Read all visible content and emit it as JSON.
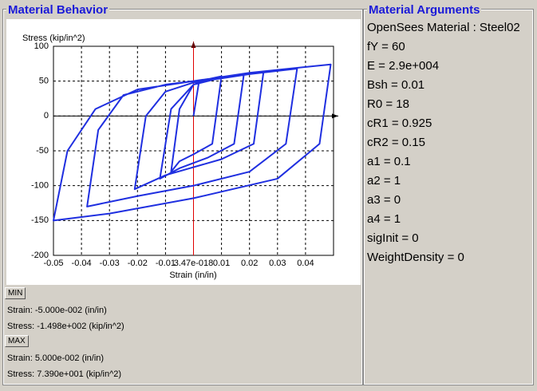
{
  "behavior_panel": {
    "title": "Material Behavior",
    "min_button": "MIN",
    "min_strain": "Strain: -5.000e-002 (in/in)",
    "min_stress": "Stress: -1.498e+002 (kip/in^2)",
    "max_button": "MAX",
    "max_strain": "Strain: 5.000e-002 (in/in)",
    "max_stress": "Stress: 7.390e+001 (kip/in^2)"
  },
  "arguments_panel": {
    "title": "Material Arguments",
    "items": [
      "OpenSees Material : Steel02",
      "fY = 60",
      "E = 2.9e+004",
      "Bsh = 0.01",
      "R0 = 18",
      "cR1 = 0.925",
      "cR2 = 0.15",
      "a1 = 0.1",
      "a2 = 1",
      "a3 = 0",
      "a4 = 1",
      "sigInit = 0",
      "WeightDensity = 0"
    ]
  },
  "chart_data": {
    "type": "line",
    "y_label": "Stress (kip/in^2)",
    "x_label": "Strain (in/in)",
    "color": "#1f2fe0",
    "grid": true,
    "xlim": [
      -0.05,
      0.05
    ],
    "xticks": [
      -0.05,
      -0.04,
      -0.03,
      -0.02,
      -0.01,
      {
        "value": 3.47e-18,
        "label": "3.47e-018"
      },
      0.01,
      0.02,
      0.03,
      0.04
    ],
    "ylim": [
      -200,
      100
    ],
    "yticks": [
      -200,
      -150,
      -100,
      -50,
      0,
      50,
      100
    ],
    "x": [
      0,
      0.002,
      0.01,
      0.0067,
      0,
      -0.005,
      -0.008,
      -0.005,
      0,
      0.005,
      0.018,
      0.0145,
      0.005,
      -0.005,
      -0.012,
      -0.008,
      0,
      0.01,
      0.025,
      0.0215,
      0.01,
      -0.01,
      -0.021,
      -0.017,
      -0.01,
      0,
      0.02,
      0.037,
      0.033,
      0.02,
      0,
      -0.02,
      -0.038,
      -0.034,
      -0.025,
      -0.01,
      0,
      0.02,
      0.049,
      0.045,
      0.03,
      0,
      -0.03,
      -0.05,
      -0.045,
      -0.035,
      -0.02,
      0
    ],
    "values": [
      0,
      50,
      57,
      -40,
      -55,
      -65,
      -80,
      10,
      45,
      52,
      60,
      -40,
      -60,
      -75,
      -90,
      10,
      45,
      55,
      63,
      -40,
      -62,
      -85,
      -105,
      0,
      35,
      48,
      60,
      68,
      -40,
      -80,
      -100,
      -115,
      -130,
      -20,
      30,
      45,
      50,
      62,
      74,
      -40,
      -90,
      -118,
      -140,
      -150,
      -50,
      10,
      38,
      50
    ]
  }
}
